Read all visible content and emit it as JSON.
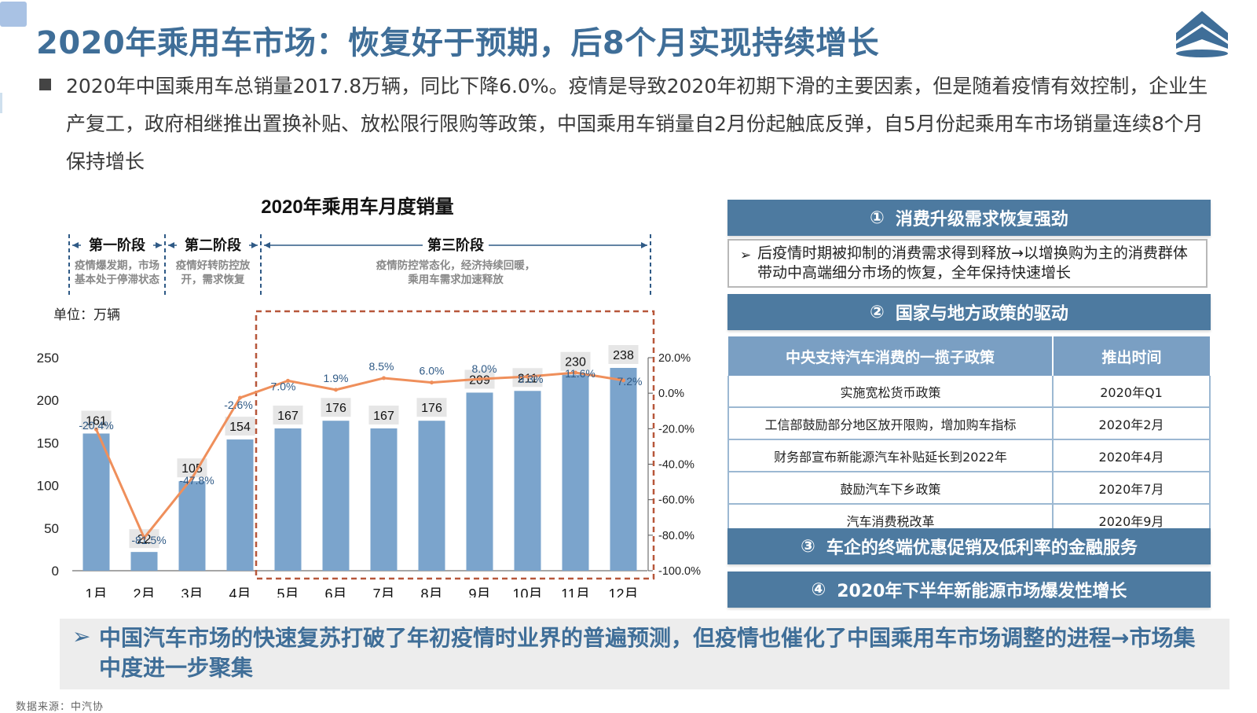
{
  "page": {
    "title": "2020年乘用车市场：恢复好于预期，后8个月实现持续增长",
    "intro": "2020年中国乘用车总销量2017.8万辆，同比下降6.0%。疫情是导致2020年初期下滑的主要因素，但是随着疫情有效控制，企业生产复工，政府相继推出置换补贴、放松限行限购等政策，中国乘用车销量自2月份起触底反弹，自5月份起乘用车市场销量连续8个月保持增长",
    "source": "数据来源：中汽协"
  },
  "colors": {
    "bar": "#7ba4cc",
    "line": "#ef8f5b",
    "title": "#3f6e98",
    "panel_header": "#4d7aa0",
    "table_header": "#7a9fc3",
    "dashed_box": "#b7573a"
  },
  "chart_data": {
    "type": "bar",
    "title": "2020年乘用车月度销量",
    "unit_label": "单位：万辆",
    "categories": [
      "1月",
      "2月",
      "3月",
      "4月",
      "5月",
      "6月",
      "7月",
      "8月",
      "9月",
      "10月",
      "11月",
      "12月"
    ],
    "series": [
      {
        "values": [
          161,
          22,
          105,
          154,
          167,
          176,
          167,
          176,
          209,
          211,
          230,
          238
        ],
        "axis": "left"
      },
      {
        "values": [
          -20.4,
          -81.5,
          -47.8,
          -2.6,
          7.0,
          1.9,
          8.5,
          6.0,
          8.0,
          9.3,
          11.6,
          7.2
        ],
        "axis": "right",
        "display_type": "line",
        "labels": [
          "-20.4%",
          "-81.5%",
          "-47.8%",
          "-2.6%",
          "7.0%",
          "1.9%",
          "8.5%",
          "6.0%",
          "8.0%",
          "9.3%",
          "11.6%",
          "7.2%"
        ]
      }
    ],
    "ylim": [
      0,
      250
    ],
    "yticks": [
      "0",
      "50",
      "100",
      "150",
      "200",
      "250"
    ],
    "y2lim": [
      -100,
      20
    ],
    "y2ticks": [
      "-100.0%",
      "-80.0%",
      "-60.0%",
      "-40.0%",
      "-20.0%",
      "0.0%",
      "20.0%"
    ],
    "phases": [
      {
        "name": "第一阶段",
        "desc": [
          "疫情爆发期，市场",
          "基本处于停滞状态"
        ],
        "from": "1月",
        "to": "2月"
      },
      {
        "name": "第二阶段",
        "desc": [
          "疫情好转防控放",
          "开，需求恢复"
        ],
        "from": "3月",
        "to": "4月"
      },
      {
        "name": "第三阶段",
        "desc": [
          "疫情防控常态化，经济持续回暖，",
          "乘用车需求加速释放"
        ],
        "from": "5月",
        "to": "12月"
      }
    ],
    "highlight_range": [
      "5月",
      "12月"
    ],
    "grid": false
  },
  "panels": {
    "p1": {
      "num": "①",
      "title": "消费升级需求恢复强劲",
      "arrow": "➢",
      "text": "后疫情时期被抑制的消费需求得到释放→以增换购为主的消费群体带动中高端细分市场的恢复，全年保持快速增长"
    },
    "p2": {
      "num": "②",
      "title": "国家与地方政策的驱动"
    },
    "policy_table": {
      "headers": [
        "中央支持汽车消费的一揽子政策",
        "推出时间"
      ],
      "rows": [
        [
          "实施宽松货币政策",
          "2020年Q1"
        ],
        [
          "工信部鼓励部分地区放开限购，增加购车指标",
          "2020年2月"
        ],
        [
          "财务部宣布新能源汽车补贴延长到2022年",
          "2020年4月"
        ],
        [
          "鼓励汽车下乡政策",
          "2020年7月"
        ],
        [
          "汽车消费税改革",
          "2020年9月"
        ]
      ]
    },
    "p3": {
      "num": "③",
      "title": "车企的终端优惠促销及低利率的金融服务"
    },
    "p4": {
      "num": "④",
      "title": "2020年下半年新能源市场爆发性增长"
    }
  },
  "conclusion": {
    "arrow": "➢",
    "text": "中国汽车市场的快速复苏打破了年初疫情时业界的普遍预测，但疫情也催化了中国乘用车市场调整的进程→市场集中度进一步聚集"
  }
}
